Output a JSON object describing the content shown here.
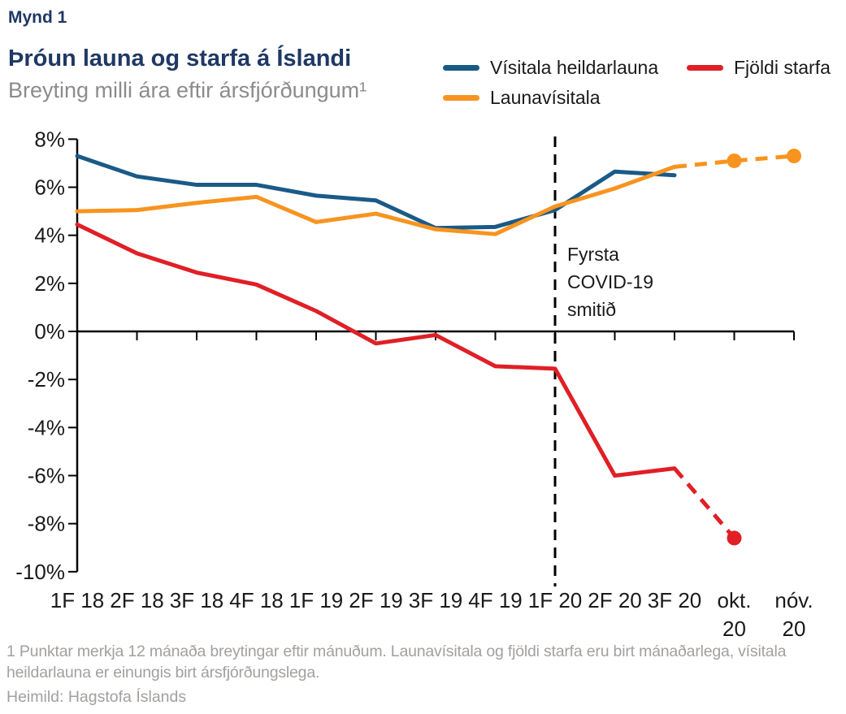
{
  "figure_label": "Mynd 1",
  "title": "Þróun launa og starfa á Íslandi",
  "subtitle": "Breyting milli ára eftir ársfjórðungum¹",
  "legend": [
    {
      "name": "Vísitala heildarlauna",
      "color": "#1A5A87"
    },
    {
      "name": "Fjöldi starfa",
      "color": "#E01F26"
    },
    {
      "name": "Launavísitala",
      "color": "#F79420"
    }
  ],
  "annotation": {
    "text": "Fyrsta\nCOVID-19\nsmitið"
  },
  "chart_data": {
    "type": "line",
    "title": "Þróun launa og starfa á Íslandi",
    "subtitle": "Breyting milli ára eftir ársfjórðungum¹",
    "categories": [
      "1F 18",
      "2F 18",
      "3F 18",
      "4F 18",
      "1F 19",
      "2F 19",
      "3F 19",
      "4F 19",
      "1F 20",
      "2F 20",
      "3F 20",
      "okt.\n20",
      "nóv.\n20"
    ],
    "y_ticks": [
      "8%",
      "6%",
      "4%",
      "2%",
      "0%",
      "-2%",
      "-4%",
      "-6%",
      "-8%",
      "-10%"
    ],
    "ylim": [
      -10,
      8
    ],
    "grid": false,
    "legend_position": "top-right",
    "covid_line_at_category": "1F 20",
    "series": [
      {
        "name": "Vísitala heildarlauna",
        "color": "#1A5A87",
        "values": [
          7.3,
          6.45,
          6.1,
          6.1,
          5.65,
          5.45,
          4.3,
          4.35,
          5.05,
          6.65,
          6.5
        ],
        "solid_until": 10,
        "markers": []
      },
      {
        "name": "Launavísitala",
        "color": "#F79420",
        "values": [
          5.0,
          5.05,
          5.35,
          5.6,
          4.55,
          4.9,
          4.25,
          4.05,
          5.2,
          5.95,
          6.85,
          7.1,
          7.3
        ],
        "solid_until": 10,
        "markers": [
          11,
          12
        ]
      },
      {
        "name": "Fjöldi starfa",
        "color": "#E01F26",
        "values": [
          4.45,
          3.25,
          2.45,
          1.95,
          0.85,
          -0.5,
          -0.15,
          -1.45,
          -1.55,
          -6.0,
          -5.7,
          -8.6
        ],
        "solid_until": 10,
        "markers": [
          11
        ]
      }
    ]
  },
  "footnote": "1 Punktar merkja 12 mánaða breytingar eftir mánuðum. Launavísitala og fjöldi starfa eru birt mánaðarlega, vísitala heildarlauna er einungis birt ársfjórðungslega.",
  "source": "Heimild: Hagstofa Íslands"
}
